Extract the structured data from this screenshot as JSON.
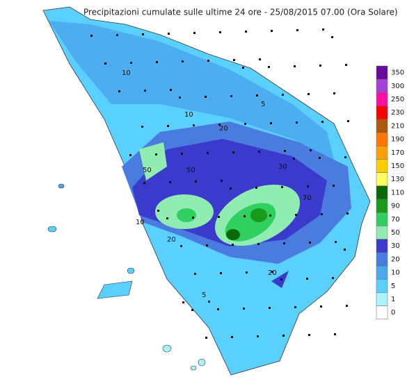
{
  "title": "Precipitazioni cumulate sulle ultime 24 ore - 25/08/2015 07.00 (Ora Solare)",
  "legend": [
    {
      "value": 350,
      "color": "#6a0a9a"
    },
    {
      "value": 300,
      "color": "#a640d8"
    },
    {
      "value": 250,
      "color": "#ff10a0"
    },
    {
      "value": 230,
      "color": "#ff0000"
    },
    {
      "value": 210,
      "color": "#b0580c"
    },
    {
      "value": 190,
      "color": "#ff7800"
    },
    {
      "value": 170,
      "color": "#ffa000"
    },
    {
      "value": 150,
      "color": "#ffcc00"
    },
    {
      "value": 130,
      "color": "#ffff60"
    },
    {
      "value": 110,
      "color": "#0a6a0a"
    },
    {
      "value": 90,
      "color": "#1a9a1a"
    },
    {
      "value": 70,
      "color": "#30d060"
    },
    {
      "value": 50,
      "color": "#90ecb0"
    },
    {
      "value": 30,
      "color": "#3a3acd"
    },
    {
      "value": 20,
      "color": "#4a7ce0"
    },
    {
      "value": 10,
      "color": "#4aa8f0"
    },
    {
      "value": 5,
      "color": "#5ad0ff"
    },
    {
      "value": 1,
      "color": "#a8f4ff"
    },
    {
      "value": 0,
      "color": "#ffffff"
    }
  ],
  "contour_labels": [
    "10",
    "10",
    "5",
    "20",
    "30",
    "50",
    "50",
    "70",
    "20",
    "20",
    "5",
    "10"
  ]
}
